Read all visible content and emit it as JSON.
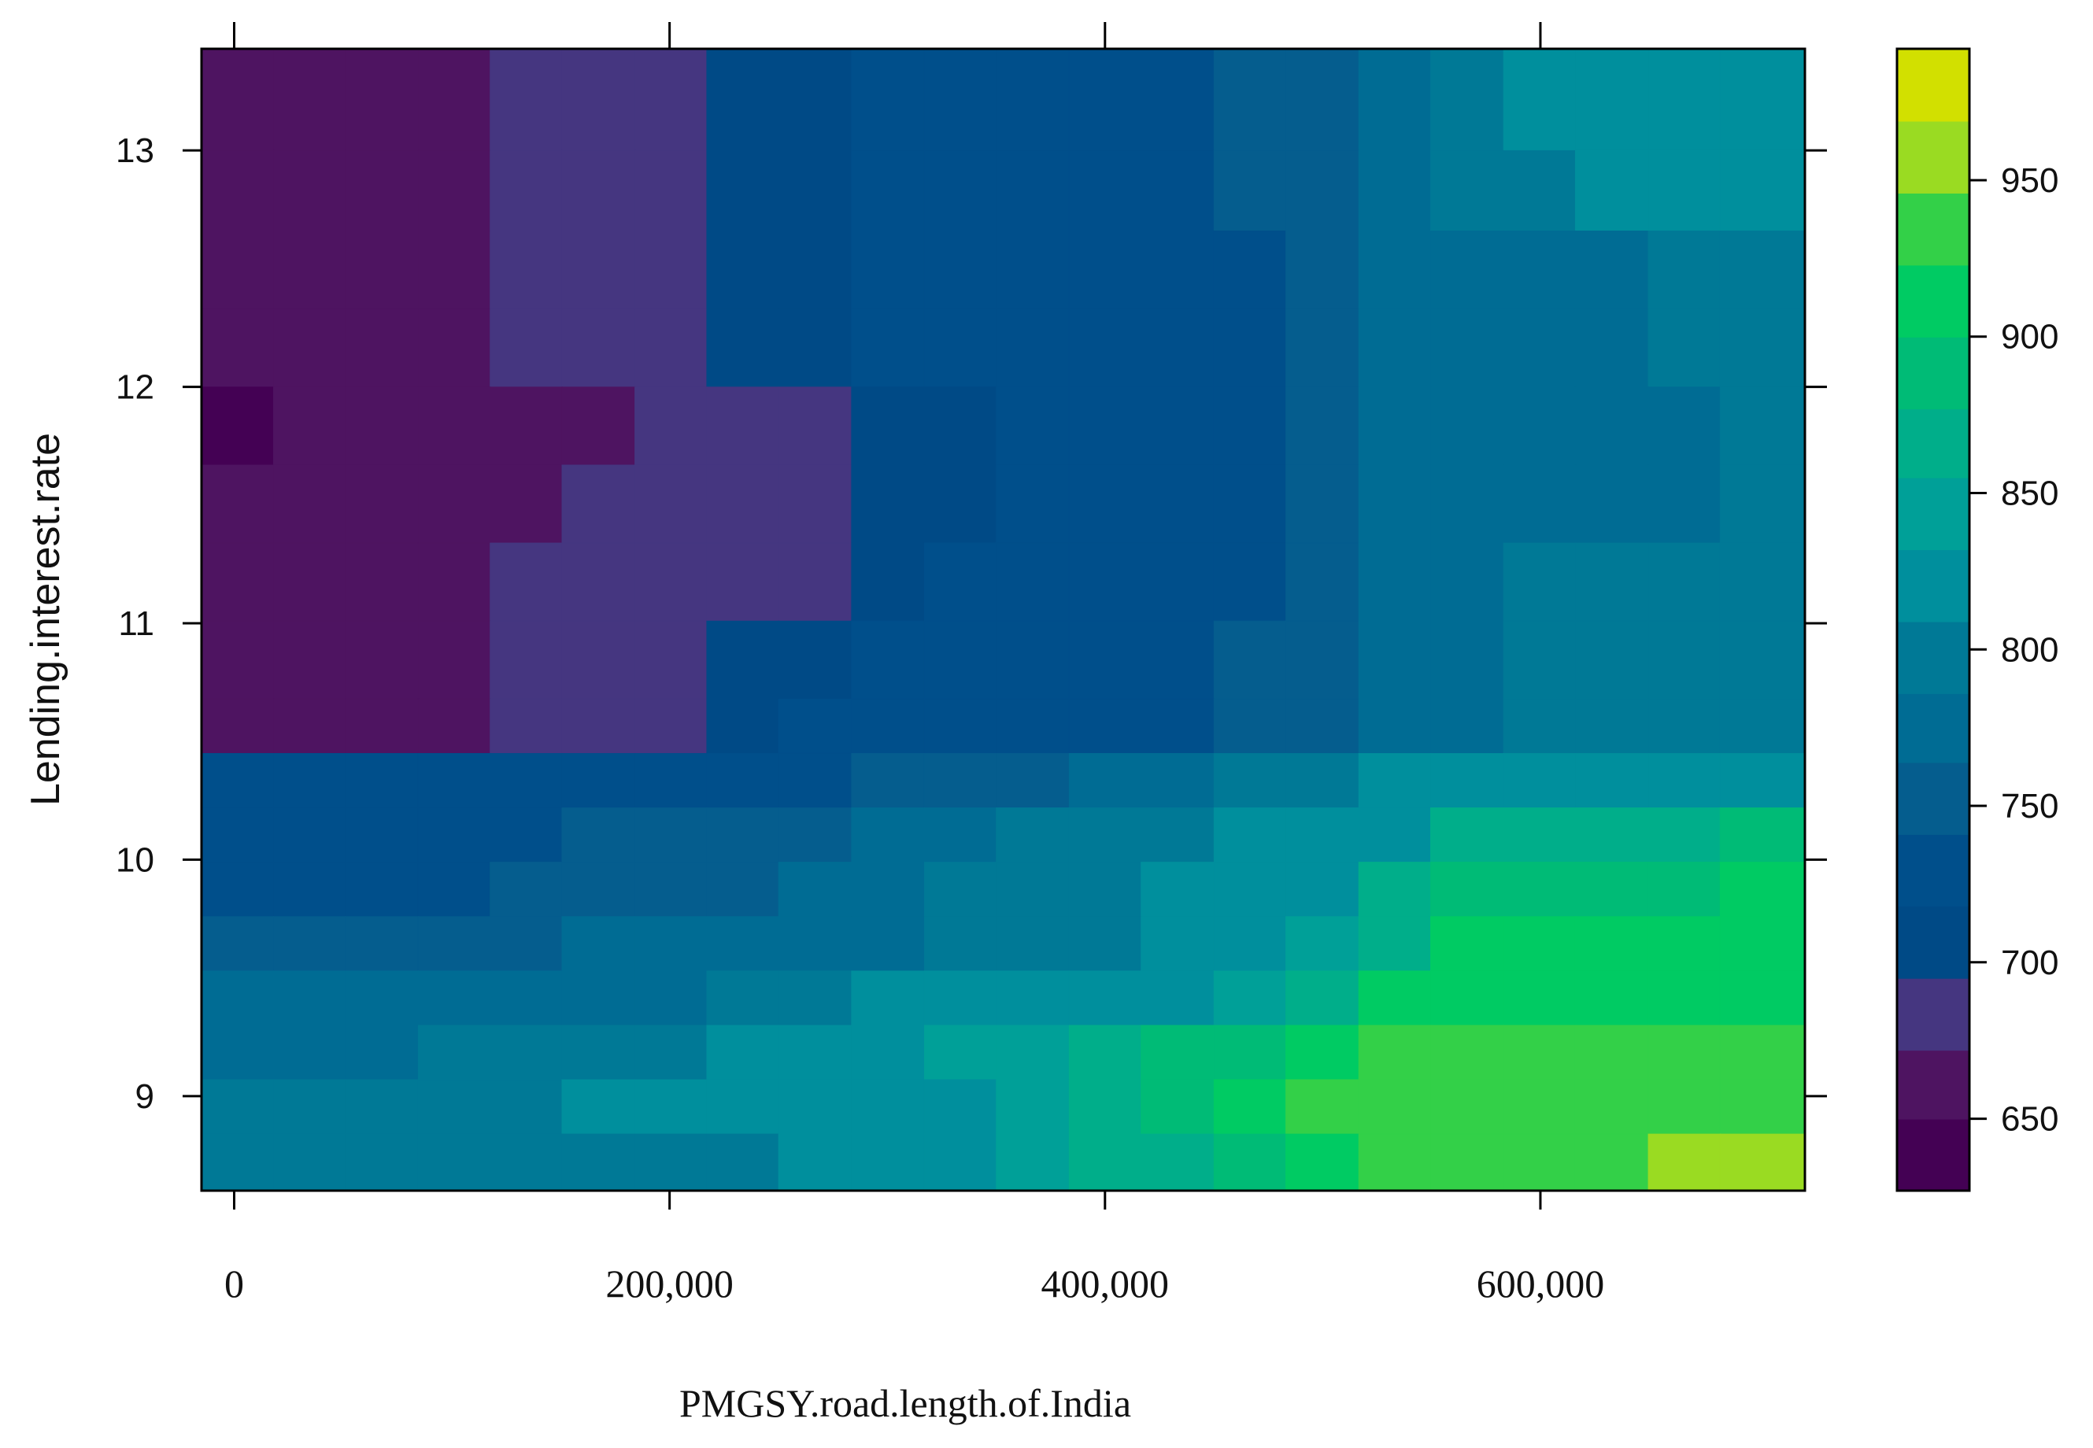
{
  "chart_data": {
    "type": "heatmap",
    "xlabel": "PMGSY.road.length.of.India",
    "ylabel": "Lending.interest.rate",
    "x_ticks": [
      0,
      200000,
      400000,
      600000
    ],
    "x_tick_labels": [
      "0",
      "200,000",
      "400,000",
      "600,000"
    ],
    "y_ticks": [
      9,
      10,
      11,
      12,
      13
    ],
    "y_tick_labels": [
      "9",
      "10",
      "11",
      "12",
      "13"
    ],
    "xlim": [
      -15000,
      721500
    ],
    "ylim": [
      8.6,
      13.43
    ],
    "x_edges": [
      -15000,
      18000,
      51000,
      84500,
      117500,
      150500,
      184000,
      217000,
      250000,
      283500,
      317000,
      350000,
      383500,
      416500,
      450000,
      483000,
      516500,
      549500,
      583000,
      616000,
      649500,
      682500,
      721500
    ],
    "y_edges": [
      8.6,
      8.84,
      9.07,
      9.3,
      9.53,
      9.76,
      9.99,
      10.22,
      10.45,
      10.68,
      11.01,
      11.34,
      11.67,
      12.0,
      12.33,
      12.66,
      13.0,
      13.43
    ],
    "z_rows_top_to_bottom": [
      [
        660,
        660,
        660,
        660,
        680,
        680,
        680,
        700,
        700,
        720,
        720,
        720,
        720,
        740,
        760,
        760,
        780,
        790,
        810,
        810,
        810,
        810
      ],
      [
        660,
        660,
        660,
        660,
        680,
        680,
        680,
        700,
        700,
        720,
        720,
        720,
        720,
        740,
        760,
        760,
        780,
        790,
        790,
        810,
        810,
        810
      ],
      [
        660,
        660,
        660,
        660,
        680,
        680,
        680,
        700,
        700,
        720,
        720,
        720,
        720,
        740,
        740,
        760,
        780,
        780,
        780,
        780,
        800,
        800
      ],
      [
        660,
        660,
        660,
        660,
        680,
        680,
        680,
        700,
        700,
        720,
        720,
        720,
        720,
        740,
        740,
        760,
        780,
        780,
        780,
        780,
        800,
        800
      ],
      [
        640,
        660,
        660,
        660,
        660,
        660,
        680,
        680,
        680,
        700,
        700,
        720,
        720,
        740,
        740,
        760,
        780,
        780,
        780,
        780,
        780,
        800
      ],
      [
        660,
        660,
        660,
        660,
        660,
        680,
        680,
        680,
        680,
        700,
        700,
        720,
        720,
        740,
        740,
        760,
        780,
        780,
        780,
        780,
        780,
        800
      ],
      [
        660,
        660,
        660,
        660,
        680,
        680,
        680,
        680,
        680,
        700,
        720,
        720,
        720,
        740,
        740,
        760,
        780,
        780,
        800,
        800,
        800,
        800
      ],
      [
        660,
        660,
        660,
        660,
        680,
        680,
        680,
        700,
        700,
        720,
        720,
        720,
        720,
        740,
        760,
        760,
        780,
        780,
        800,
        800,
        800,
        800
      ],
      [
        660,
        660,
        660,
        660,
        680,
        680,
        680,
        700,
        720,
        720,
        720,
        720,
        720,
        740,
        760,
        760,
        770,
        780,
        800,
        800,
        800,
        800
      ],
      [
        720,
        720,
        720,
        720,
        720,
        740,
        740,
        740,
        740,
        760,
        760,
        760,
        780,
        780,
        790,
        790,
        810,
        820,
        820,
        820,
        820,
        830
      ],
      [
        730,
        730,
        730,
        730,
        730,
        750,
        750,
        750,
        750,
        770,
        770,
        790,
        790,
        790,
        810,
        810,
        830,
        870,
        870,
        870,
        870,
        880
      ],
      [
        730,
        730,
        730,
        730,
        750,
        750,
        750,
        750,
        770,
        770,
        790,
        790,
        790,
        810,
        810,
        830,
        870,
        880,
        880,
        880,
        880,
        900
      ],
      [
        760,
        760,
        760,
        760,
        760,
        770,
        770,
        770,
        780,
        780,
        790,
        800,
        800,
        820,
        820,
        840,
        870,
        900,
        900,
        900,
        900,
        900
      ],
      [
        780,
        780,
        780,
        780,
        780,
        780,
        780,
        790,
        790,
        810,
        810,
        810,
        830,
        830,
        850,
        870,
        900,
        920,
        920,
        920,
        920,
        920
      ],
      [
        780,
        780,
        780,
        790,
        790,
        790,
        790,
        810,
        820,
        820,
        840,
        840,
        860,
        880,
        880,
        920,
        940,
        940,
        940,
        940,
        940,
        940
      ],
      [
        790,
        790,
        790,
        790,
        790,
        810,
        810,
        810,
        820,
        830,
        830,
        840,
        860,
        880,
        920,
        940,
        940,
        940,
        940,
        940,
        940,
        940
      ],
      [
        790,
        790,
        790,
        790,
        790,
        800,
        800,
        800,
        820,
        830,
        830,
        840,
        860,
        860,
        880,
        920,
        940,
        940,
        940,
        940,
        960,
        960
      ]
    ],
    "colorbar": {
      "ticks": [
        650,
        700,
        750,
        800,
        850,
        900,
        950
      ],
      "tick_labels": [
        "650",
        "700",
        "750",
        "800",
        "850",
        "900",
        "950"
      ],
      "breaks": [
        627,
        650,
        672,
        695,
        718,
        741,
        764,
        786,
        809,
        832,
        855,
        877,
        900,
        923,
        946,
        969,
        992
      ],
      "colors": [
        "#440154",
        "#4E1461",
        "#453680",
        "#004A86",
        "#004F8B",
        "#055D8E",
        "#006C94",
        "#007996",
        "#008F9D",
        "#00A098",
        "#00AE8A",
        "#00BB76",
        "#00CB63",
        "#33D048",
        "#9ADB22",
        "#D2E000",
        "#FDE300"
      ]
    }
  }
}
